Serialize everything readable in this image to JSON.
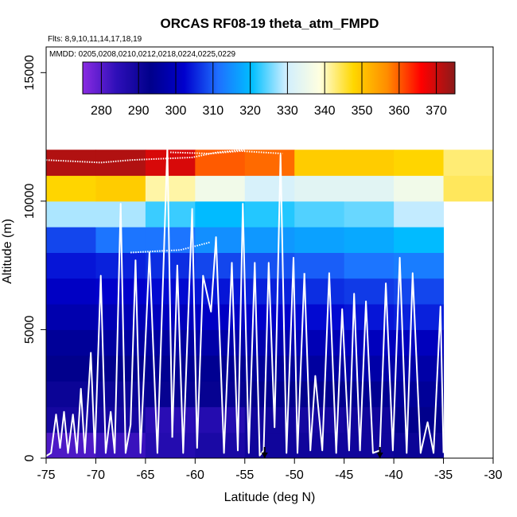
{
  "chart_data": {
    "type": "heatmap",
    "title": "ORCAS RF08-19 theta_atm_FMPD",
    "subtitle_flights": "Flts: 8,9,10,11,14,17,18,19",
    "subtitle_dates": "MMDD: 0205,0208,0210,0212,0218,0224,0225,0229",
    "xlabel": "Latitude (deg N)",
    "ylabel": "Altitude (m)",
    "xlim": [
      -75,
      -30
    ],
    "ylim": [
      0,
      16000
    ],
    "x_ticks": [
      "-75",
      "-70",
      "-65",
      "-60",
      "-55",
      "-50",
      "-45",
      "-40",
      "-35",
      "-30"
    ],
    "y_ticks": [
      "0",
      "5000",
      "10000",
      "15000"
    ],
    "colorbar": {
      "vmin": 275,
      "vmax": 375,
      "ticks": [
        "280",
        "290",
        "300",
        "310",
        "320",
        "330",
        "340",
        "350",
        "360",
        "370"
      ],
      "stops": [
        "#8a2be2",
        "#2e0fb8",
        "#00008b",
        "#0000cd",
        "#1e6fff",
        "#00bfff",
        "#cfeeff",
        "#ffffe0",
        "#ffd700",
        "#ff8c00",
        "#ff0000",
        "#8b1a1a"
      ]
    },
    "grid": {
      "lat_edges": [
        -75,
        -70,
        -65,
        -60,
        -55,
        -50,
        -45,
        -40,
        -35,
        -30
      ],
      "alt_edges": [
        0,
        1000,
        2000,
        3000,
        4000,
        5000,
        6000,
        7000,
        8000,
        9000,
        10000,
        11000,
        12000
      ],
      "values": [
        [
          281,
          283,
          286,
          288,
          290,
          290,
          290,
          291,
          0
        ],
        [
          289,
          289,
          285,
          286,
          290,
          289,
          290,
          293,
          0
        ],
        [
          291,
          291,
          292,
          292,
          293,
          293,
          294,
          295,
          0
        ],
        [
          293,
          293,
          294,
          294,
          295,
          296,
          297,
          297,
          0
        ],
        [
          295,
          296,
          296,
          297,
          298,
          299,
          300,
          300,
          0
        ],
        [
          298,
          299,
          300,
          301,
          302,
          303,
          304,
          305,
          0
        ],
        [
          301,
          302,
          303,
          304,
          305,
          306,
          307,
          308,
          0
        ],
        [
          304,
          305,
          306,
          308,
          309,
          310,
          312,
          313,
          0
        ],
        [
          308,
          312,
          312,
          315,
          316,
          317,
          318,
          320,
          0
        ],
        [
          328,
          328,
          323,
          320,
          322,
          324,
          325,
          329,
          0
        ],
        [
          348,
          349,
          341,
          336,
          331,
          333,
          333,
          336,
          344
        ],
        [
          372,
          372,
          369,
          360,
          359,
          349,
          349,
          348,
          343
        ]
      ],
      "missing_value": 0
    },
    "flight_tracks": [
      {
        "name": "profile-1",
        "points": [
          [
            -75,
            80
          ],
          [
            -74.5,
            200
          ],
          [
            -74,
            1700
          ],
          [
            -73.6,
            400
          ],
          [
            -73.2,
            1800
          ],
          [
            -72.8,
            200
          ],
          [
            -72.3,
            1700
          ],
          [
            -71.9,
            200
          ],
          [
            -71.5,
            2700
          ],
          [
            -71.1,
            200
          ],
          [
            -70.5,
            4100
          ],
          [
            -70.1,
            200
          ],
          [
            -69.5,
            7100
          ],
          [
            -69,
            200
          ],
          [
            -68.5,
            1800
          ],
          [
            -68.1,
            200
          ],
          [
            -67.5,
            9900
          ],
          [
            -67,
            200
          ],
          [
            -66.5,
            1300
          ],
          [
            -66,
            7700
          ],
          [
            -65.5,
            200
          ],
          [
            -64.6,
            8000
          ],
          [
            -63.8,
            200
          ],
          [
            -62.8,
            12100
          ],
          [
            -62.3,
            800
          ]
        ]
      },
      {
        "name": "profile-2",
        "points": [
          [
            -62.3,
            800
          ],
          [
            -61.8,
            7500
          ],
          [
            -61.2,
            200
          ],
          [
            -60.3,
            9700
          ],
          [
            -59.8,
            400
          ],
          [
            -59.2,
            7100
          ],
          [
            -58.4,
            5700
          ],
          [
            -57.9,
            8600
          ],
          [
            -57.1,
            200
          ],
          [
            -56.3,
            7600
          ],
          [
            -55.7,
            300
          ],
          [
            -55.2,
            9900
          ],
          [
            -54.6,
            200
          ],
          [
            -54,
            7600
          ],
          [
            -53.5,
            100
          ],
          [
            -53.1,
            300
          ],
          [
            -52.6,
            7600
          ],
          [
            -52,
            1200
          ],
          [
            -51.4,
            11800
          ],
          [
            -50.8,
            200
          ],
          [
            -50.1,
            7800
          ],
          [
            -49.7,
            200
          ],
          [
            -49,
            7200
          ]
        ]
      },
      {
        "name": "profile-3",
        "points": [
          [
            -49,
            7200
          ],
          [
            -48.4,
            300
          ],
          [
            -47.9,
            3200
          ],
          [
            -47.2,
            300
          ],
          [
            -46.5,
            7200
          ],
          [
            -45.8,
            200
          ],
          [
            -45.2,
            5800
          ],
          [
            -44.5,
            300
          ],
          [
            -44,
            6400
          ],
          [
            -43.4,
            300
          ],
          [
            -42.8,
            6100
          ],
          [
            -42.1,
            200
          ],
          [
            -41.4,
            300
          ],
          [
            -40.8,
            6800
          ],
          [
            -40.1,
            300
          ],
          [
            -39.4,
            7800
          ],
          [
            -38.7,
            200
          ],
          [
            -38.1,
            7200
          ],
          [
            -37.3,
            200
          ],
          [
            -36.6,
            1400
          ],
          [
            -36,
            200
          ],
          [
            -35.3,
            5900
          ],
          [
            -35,
            200
          ]
        ]
      }
    ],
    "long_legs": [
      {
        "name": "ferry-1",
        "points": [
          [
            -75,
            11600
          ],
          [
            -69.5,
            11500
          ],
          [
            -66.5,
            11600
          ],
          [
            -60.3,
            11700
          ],
          [
            -57.8,
            11900
          ],
          [
            -55,
            12000
          ]
        ]
      },
      {
        "name": "ferry-2",
        "points": [
          [
            -66.5,
            8000
          ],
          [
            -61.5,
            8100
          ],
          [
            -58.5,
            8400
          ]
        ]
      },
      {
        "name": "ferry-3",
        "points": [
          [
            -62.5,
            11900
          ],
          [
            -58.5,
            11850
          ],
          [
            -55.4,
            11950
          ],
          [
            -51.2,
            11850
          ]
        ]
      }
    ],
    "markers": [
      {
        "name": "arrow-1",
        "lat": -53.0
      },
      {
        "name": "arrow-2",
        "lat": -41.4
      }
    ]
  }
}
